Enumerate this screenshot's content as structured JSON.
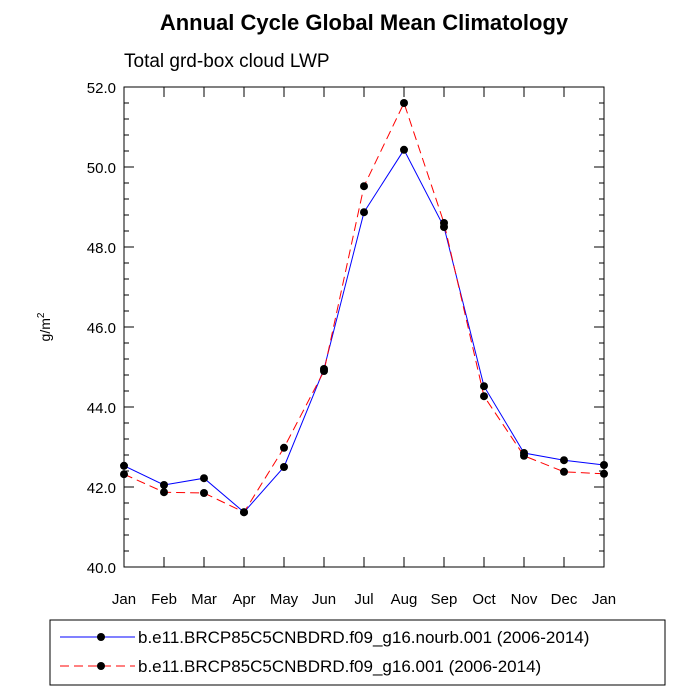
{
  "chart_data": {
    "type": "line",
    "title": "Annual Cycle Global Mean Climatology",
    "subtitle": "Total grd-box cloud LWP",
    "ylabel": "g/m",
    "ylabel_superscript": "2",
    "xlabel": "",
    "categories": [
      "Jan",
      "Feb",
      "Mar",
      "Apr",
      "May",
      "Jun",
      "Jul",
      "Aug",
      "Sep",
      "Oct",
      "Nov",
      "Dec",
      "Jan"
    ],
    "ylim": [
      40.0,
      52.0
    ],
    "yticks": [
      40.0,
      42.0,
      44.0,
      46.0,
      48.0,
      50.0,
      52.0
    ],
    "ytick_labels": [
      "40.0",
      "42.0",
      "44.0",
      "46.0",
      "48.0",
      "50.0",
      "52.0"
    ],
    "grid": false,
    "legend_position": "bottom",
    "series": [
      {
        "name": "b.e11.BRCP85C5CNBDRD.f09_g16.nourb.001 (2006-2014)",
        "color": "#0000ff",
        "dash": "solid",
        "values": [
          42.53,
          42.05,
          42.22,
          41.37,
          42.5,
          44.95,
          48.87,
          50.43,
          48.5,
          44.52,
          42.85,
          42.67,
          42.55
        ]
      },
      {
        "name": "b.e11.BRCP85C5CNBDRD.f09_g16.001 (2006-2014)",
        "color": "#ff0000",
        "dash": "dashed",
        "values": [
          42.32,
          41.87,
          41.85,
          41.37,
          42.98,
          44.9,
          49.52,
          51.6,
          48.6,
          44.27,
          42.78,
          42.38,
          42.33
        ]
      }
    ]
  }
}
